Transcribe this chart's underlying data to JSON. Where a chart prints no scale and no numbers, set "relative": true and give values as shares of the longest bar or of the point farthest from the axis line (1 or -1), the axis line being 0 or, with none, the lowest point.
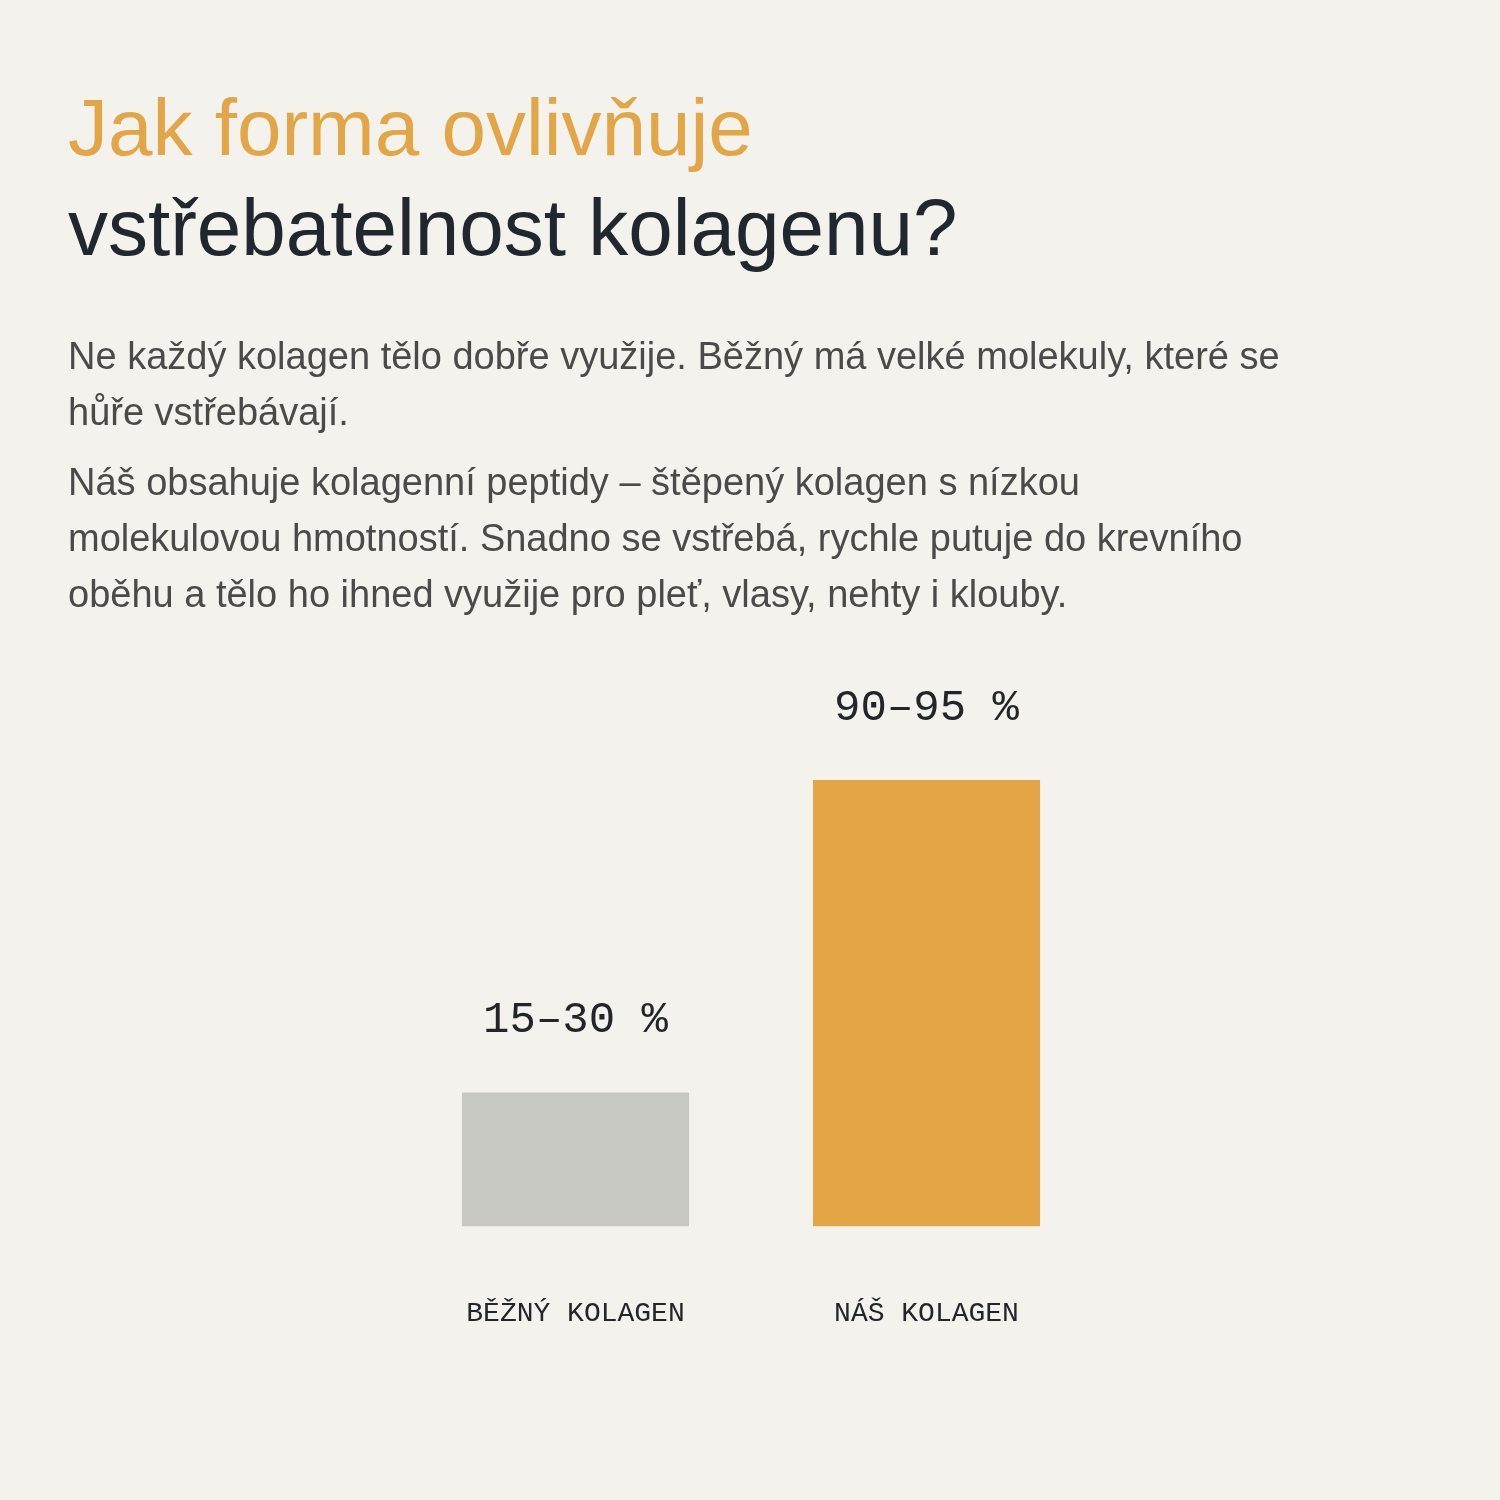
{
  "chart_data": {
    "type": "bar",
    "title": "Jak forma ovlivňuje",
    "subtitle": "vstřebatelnost kolagenu?",
    "annotations": [
      "Ne každý kolagen tělo dobře využije. Běžný má velké molekuly, které se hůře vstřebávají.",
      "Náš obsahuje kolagenní peptidy – štěpený kolagen s nízkou molekulovou hmotností. Snadno se vstřebá, rychle putuje do krevního oběhu a tělo ho ihned využije pro pleť, vlasy, nehty i klouby.",
      {
        "text": "15–30 %",
        "x": "BĚŽNÝ KOLAGEN",
        "y": 0.3
      },
      {
        "text": "90–95 %",
        "x": "NÁŠ KOLAGEN",
        "y": 1
      }
    ],
    "categories": [
      "BĚŽNÝ KOLAGEN",
      "NÁŠ KOLAGEN"
    ],
    "values": [
      0.3,
      1
    ],
    "colors": [
      "#c8c8c2",
      "#e3a545"
    ],
    "relative": true,
    "grid": false,
    "legend": false
  }
}
